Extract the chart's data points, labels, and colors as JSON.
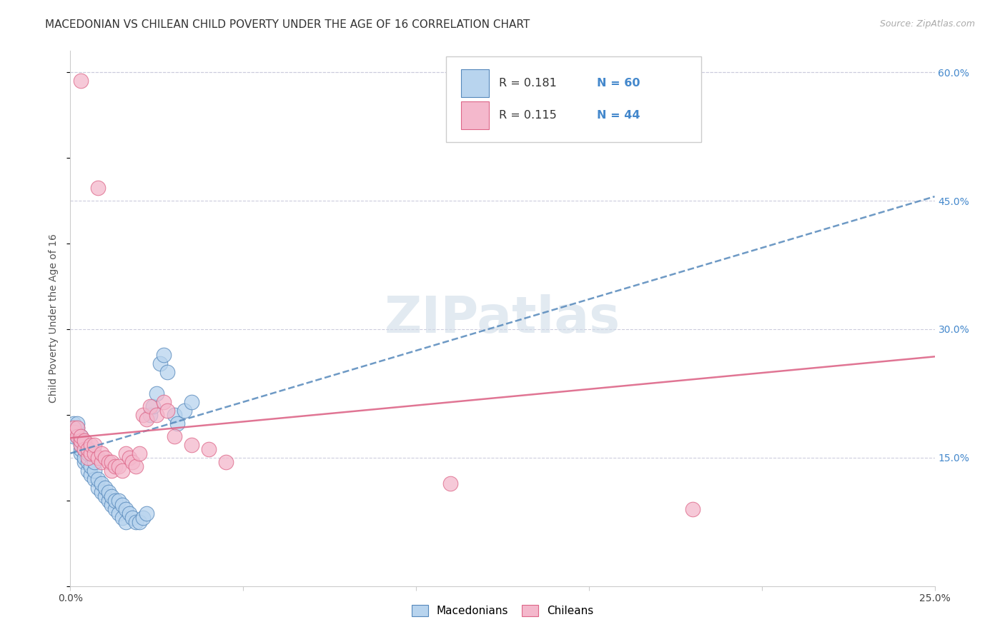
{
  "title": "MACEDONIAN VS CHILEAN CHILD POVERTY UNDER THE AGE OF 16 CORRELATION CHART",
  "source": "Source: ZipAtlas.com",
  "ylabel": "Child Poverty Under the Age of 16",
  "xlim": [
    0.0,
    0.25
  ],
  "ylim": [
    0.0,
    0.625
  ],
  "xticks": [
    0.0,
    0.05,
    0.1,
    0.15,
    0.2,
    0.25
  ],
  "xtick_labels": [
    "0.0%",
    "",
    "",
    "",
    "",
    "25.0%"
  ],
  "yticks_right": [
    0.15,
    0.3,
    0.45,
    0.6
  ],
  "ytick_right_labels": [
    "15.0%",
    "30.0%",
    "45.0%",
    "60.0%"
  ],
  "title_fontsize": 11,
  "axis_label_fontsize": 10,
  "tick_fontsize": 10,
  "color_macedonian_fill": "#b8d4ee",
  "color_macedonian_edge": "#5588bb",
  "color_chilean_fill": "#f4b8cc",
  "color_chilean_edge": "#dd6688",
  "color_macedonian_line": "#5588bb",
  "color_chilean_line": "#dd6688",
  "color_blue_text": "#4488cc",
  "mac_trend_x": [
    0.0,
    0.25
  ],
  "mac_trend_y": [
    0.155,
    0.455
  ],
  "chi_trend_x": [
    0.0,
    0.25
  ],
  "chi_trend_y": [
    0.173,
    0.268
  ],
  "watermark": "ZIPatlas",
  "background_color": "#ffffff",
  "grid_color": "#ccccdd",
  "figsize": [
    14.06,
    8.92
  ],
  "mac_x": [
    0.001,
    0.001,
    0.001,
    0.002,
    0.002,
    0.002,
    0.002,
    0.003,
    0.003,
    0.003,
    0.003,
    0.003,
    0.004,
    0.004,
    0.004,
    0.004,
    0.005,
    0.005,
    0.005,
    0.005,
    0.006,
    0.006,
    0.006,
    0.007,
    0.007,
    0.007,
    0.008,
    0.008,
    0.009,
    0.009,
    0.01,
    0.01,
    0.011,
    0.011,
    0.012,
    0.012,
    0.013,
    0.013,
    0.014,
    0.014,
    0.015,
    0.015,
    0.016,
    0.016,
    0.017,
    0.018,
    0.019,
    0.02,
    0.021,
    0.022,
    0.023,
    0.024,
    0.025,
    0.026,
    0.027,
    0.028,
    0.03,
    0.031,
    0.033,
    0.035
  ],
  "mac_y": [
    0.175,
    0.185,
    0.19,
    0.175,
    0.18,
    0.185,
    0.19,
    0.155,
    0.16,
    0.165,
    0.17,
    0.175,
    0.145,
    0.15,
    0.16,
    0.165,
    0.135,
    0.145,
    0.155,
    0.16,
    0.13,
    0.14,
    0.155,
    0.125,
    0.135,
    0.145,
    0.115,
    0.125,
    0.11,
    0.12,
    0.105,
    0.115,
    0.1,
    0.11,
    0.095,
    0.105,
    0.09,
    0.1,
    0.085,
    0.1,
    0.08,
    0.095,
    0.075,
    0.09,
    0.085,
    0.08,
    0.075,
    0.075,
    0.08,
    0.085,
    0.2,
    0.21,
    0.225,
    0.26,
    0.27,
    0.25,
    0.2,
    0.19,
    0.205,
    0.215
  ],
  "chi_x": [
    0.001,
    0.001,
    0.002,
    0.002,
    0.003,
    0.003,
    0.003,
    0.004,
    0.004,
    0.005,
    0.005,
    0.006,
    0.006,
    0.007,
    0.007,
    0.008,
    0.009,
    0.009,
    0.01,
    0.011,
    0.012,
    0.012,
    0.013,
    0.014,
    0.015,
    0.016,
    0.017,
    0.018,
    0.019,
    0.02,
    0.021,
    0.022,
    0.023,
    0.025,
    0.027,
    0.028,
    0.03,
    0.035,
    0.04,
    0.045,
    0.11,
    0.18,
    0.003,
    0.008
  ],
  "chi_y": [
    0.18,
    0.185,
    0.175,
    0.185,
    0.165,
    0.17,
    0.175,
    0.16,
    0.17,
    0.15,
    0.16,
    0.155,
    0.165,
    0.155,
    0.165,
    0.15,
    0.145,
    0.155,
    0.15,
    0.145,
    0.135,
    0.145,
    0.14,
    0.14,
    0.135,
    0.155,
    0.15,
    0.145,
    0.14,
    0.155,
    0.2,
    0.195,
    0.21,
    0.2,
    0.215,
    0.205,
    0.175,
    0.165,
    0.16,
    0.145,
    0.12,
    0.09,
    0.59,
    0.465
  ]
}
